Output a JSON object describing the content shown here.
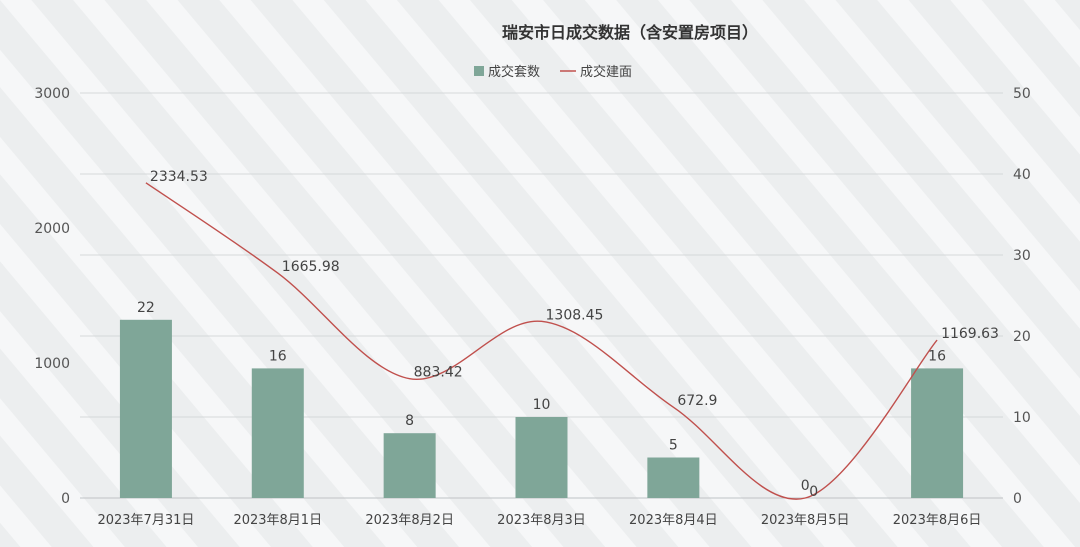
{
  "chart_data": {
    "type": "bar+line",
    "title": "瑞安市日成交数据（含安置房项目）",
    "categories": [
      "2023年7月31日",
      "2023年8月1日",
      "2023年8月2日",
      "2023年8月3日",
      "2023年8月4日",
      "2023年8月5日",
      "2023年8月6日"
    ],
    "series": [
      {
        "name": "成交套数",
        "type": "bar",
        "axis": "right",
        "values": [
          22,
          16,
          8,
          10,
          5,
          0,
          16
        ],
        "labels": [
          "22",
          "16",
          "8",
          "10",
          "5",
          "0",
          "16"
        ],
        "color": "#7fa698"
      },
      {
        "name": "成交建面",
        "type": "line",
        "axis": "left",
        "values": [
          2334.53,
          1665.98,
          883.42,
          1308.45,
          672.9,
          0,
          1169.63
        ],
        "labels": [
          "2334.53",
          "1665.98",
          "883.42",
          "1308.45",
          "672.9",
          "0",
          "1169.63"
        ],
        "color": "#c0504d"
      }
    ],
    "y_left": {
      "min": 0,
      "max": 3000,
      "ticks": [
        "0",
        "1000",
        "2000",
        "3000"
      ]
    },
    "y_right": {
      "min": 0,
      "max": 50,
      "ticks": [
        "0",
        "10",
        "20",
        "30",
        "40",
        "50"
      ]
    },
    "legend_position": "top-center",
    "grid": true
  }
}
